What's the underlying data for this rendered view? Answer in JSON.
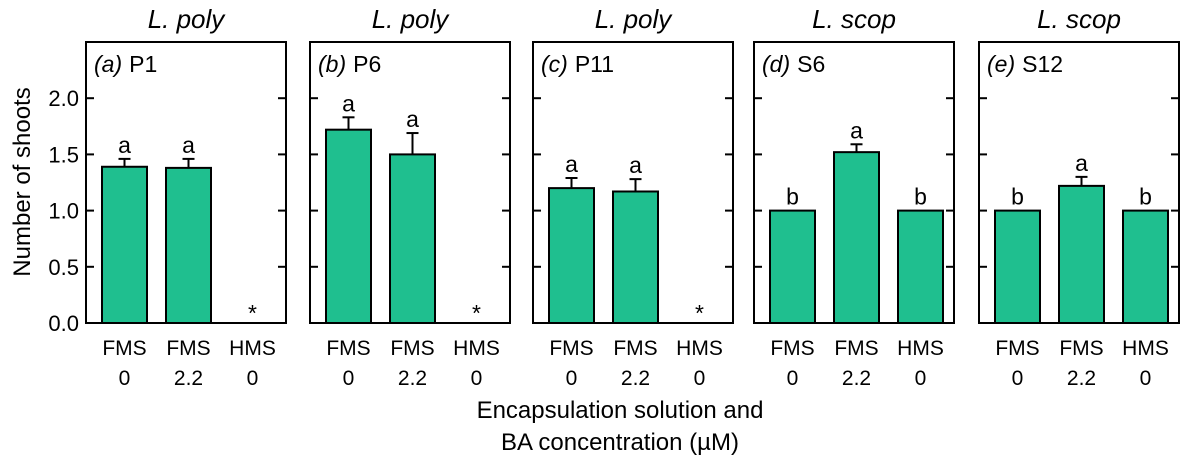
{
  "figure": {
    "ylabel": "Number of shoots",
    "xlabel_line1": "Encapsulation solution and",
    "xlabel_line2": "BA concentration (µM)",
    "bar_color": "#1fbf8f",
    "y_ticks": [
      "0.0",
      "0.5",
      "1.0",
      "1.5",
      "2.0"
    ]
  },
  "chart_data": [
    {
      "type": "bar",
      "title": "L. poly",
      "panel_letter": "(a)",
      "panel_id": "P1",
      "categories": [
        {
          "solution": "FMS",
          "ba": "0"
        },
        {
          "solution": "FMS",
          "ba": "2.2"
        },
        {
          "solution": "HMS",
          "ba": "0"
        }
      ],
      "values": [
        1.39,
        1.38,
        0
      ],
      "errors": [
        0.07,
        0.08,
        0
      ],
      "labels": [
        "a",
        "a",
        "*"
      ],
      "ylim": [
        0,
        2.5
      ]
    },
    {
      "type": "bar",
      "title": "L. poly",
      "panel_letter": "(b)",
      "panel_id": "P6",
      "categories": [
        {
          "solution": "FMS",
          "ba": "0"
        },
        {
          "solution": "FMS",
          "ba": "2.2"
        },
        {
          "solution": "HMS",
          "ba": "0"
        }
      ],
      "values": [
        1.72,
        1.5,
        0
      ],
      "errors": [
        0.11,
        0.19,
        0
      ],
      "labels": [
        "a",
        "a",
        "*"
      ],
      "ylim": [
        0,
        2.5
      ]
    },
    {
      "type": "bar",
      "title": "L. poly",
      "panel_letter": "(c)",
      "panel_id": "P11",
      "categories": [
        {
          "solution": "FMS",
          "ba": "0"
        },
        {
          "solution": "FMS",
          "ba": "2.2"
        },
        {
          "solution": "HMS",
          "ba": "0"
        }
      ],
      "values": [
        1.2,
        1.17,
        0
      ],
      "errors": [
        0.09,
        0.11,
        0
      ],
      "labels": [
        "a",
        "a",
        "*"
      ],
      "ylim": [
        0,
        2.5
      ]
    },
    {
      "type": "bar",
      "title": "L. scop",
      "panel_letter": "(d)",
      "panel_id": "S6",
      "categories": [
        {
          "solution": "FMS",
          "ba": "0"
        },
        {
          "solution": "FMS",
          "ba": "2.2"
        },
        {
          "solution": "HMS",
          "ba": "0"
        }
      ],
      "values": [
        1.0,
        1.52,
        1.0
      ],
      "errors": [
        0,
        0.07,
        0
      ],
      "labels": [
        "b",
        "a",
        "b"
      ],
      "ylim": [
        0,
        2.5
      ]
    },
    {
      "type": "bar",
      "title": "L. scop",
      "panel_letter": "(e)",
      "panel_id": "S12",
      "categories": [
        {
          "solution": "FMS",
          "ba": "0"
        },
        {
          "solution": "FMS",
          "ba": "2.2"
        },
        {
          "solution": "HMS",
          "ba": "0"
        }
      ],
      "values": [
        1.0,
        1.22,
        1.0
      ],
      "errors": [
        0,
        0.08,
        0
      ],
      "labels": [
        "b",
        "a",
        "b"
      ],
      "ylim": [
        0,
        2.5
      ]
    }
  ]
}
